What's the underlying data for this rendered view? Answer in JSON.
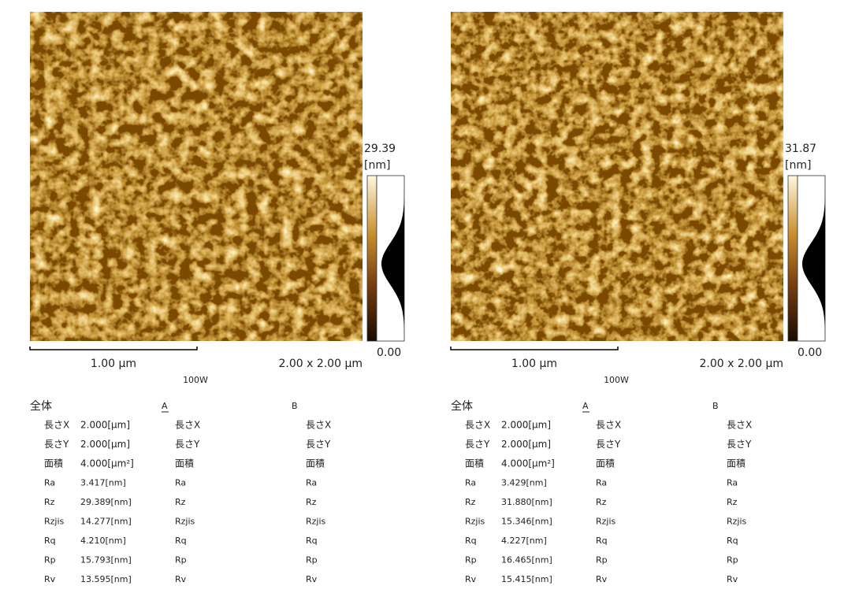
{
  "panels": [
    {
      "colorbar": {
        "max": "29.39",
        "unit": "[nm]",
        "min": "0.00"
      },
      "image": {
        "scale_bar": "1.00 µm",
        "size": "2.00 x 2.00 µm",
        "caption": "100W"
      },
      "table": {
        "headers": [
          "全体",
          "A",
          "B"
        ],
        "rows": [
          [
            "長さX",
            "2.000[µm]",
            "長さX",
            "長さX"
          ],
          [
            "長さY",
            "2.000[µm]",
            "長さY",
            "長さY"
          ],
          [
            "面積",
            "4.000[µm²]",
            "面積",
            "面積"
          ],
          [
            "Ra",
            "3.417[nm]",
            "Ra",
            "Ra"
          ],
          [
            "Rz",
            "29.389[nm]",
            "Rz",
            "Rz"
          ],
          [
            "Rzjis",
            "14.277[nm]",
            "Rzjis",
            "Rzjis"
          ],
          [
            "Rq",
            "4.210[nm]",
            "Rq",
            "Rq"
          ],
          [
            "Rp",
            "15.793[nm]",
            "Rp",
            "Rp"
          ],
          [
            "Rv",
            "13.595[nm]",
            "Rv",
            "Rv"
          ]
        ]
      }
    },
    {
      "colorbar": {
        "max": "31.87",
        "unit": "[nm]",
        "min": "0.00"
      },
      "image": {
        "scale_bar": "1.00 µm",
        "size": "2.00 x 2.00 µm",
        "caption": "100W"
      },
      "table": {
        "headers": [
          "全体",
          "A",
          "B"
        ],
        "rows": [
          [
            "長さX",
            "2.000[µm]",
            "長さX",
            "長さX"
          ],
          [
            "長さY",
            "2.000[µm]",
            "長さY",
            "長さY"
          ],
          [
            "面積",
            "4.000[µm²]",
            "面積",
            "面積"
          ],
          [
            "Ra",
            "3.429[nm]",
            "Ra",
            "Ra"
          ],
          [
            "Rz",
            "31.880[nm]",
            "Rz",
            "Rz"
          ],
          [
            "Rzjis",
            "15.346[nm]",
            "Rzjis",
            "Rzjis"
          ],
          [
            "Rq",
            "4.227[nm]",
            "Rq",
            "Rq"
          ],
          [
            "Rp",
            "16.465[nm]",
            "Rp",
            "Rp"
          ],
          [
            "Rv",
            "15.415[nm]",
            "Rv",
            "Rv"
          ]
        ]
      }
    }
  ]
}
